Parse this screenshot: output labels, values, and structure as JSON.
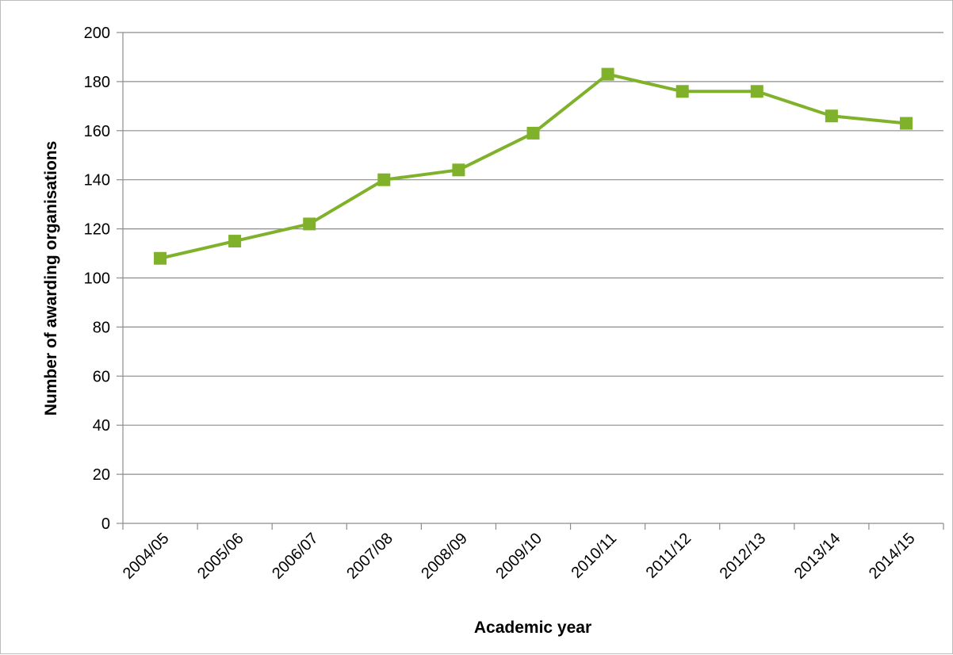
{
  "chart_data": {
    "type": "line",
    "title": "",
    "xlabel": "Academic year",
    "ylabel": "Number of awarding organisations",
    "categories": [
      "2004/05",
      "2005/06",
      "2006/07",
      "2007/08",
      "2008/09",
      "2009/10",
      "2010/11",
      "2011/12",
      "2012/13",
      "2013/14",
      "2014/15"
    ],
    "series": [
      {
        "values": [
          108,
          115,
          122,
          140,
          144,
          159,
          183,
          176,
          176,
          166,
          163
        ],
        "color": "#7fb22a",
        "marker": "square"
      }
    ],
    "ylim": [
      0,
      200
    ],
    "yticks": [
      0,
      20,
      40,
      60,
      80,
      100,
      120,
      140,
      160,
      180,
      200
    ],
    "grid": "horizontal",
    "legend": "none"
  }
}
